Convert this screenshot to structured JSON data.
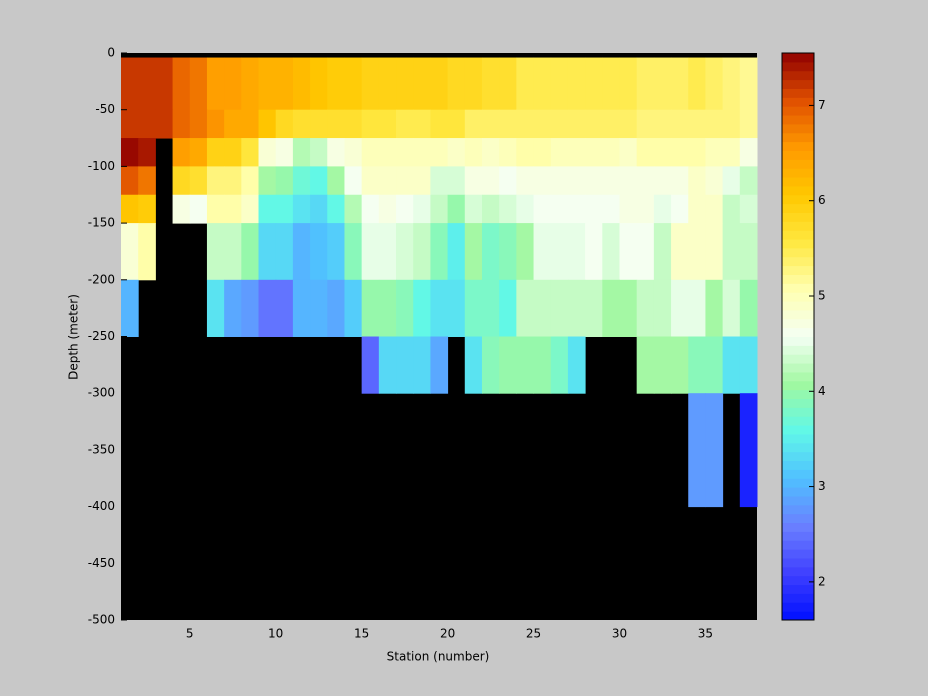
{
  "chart_data": {
    "type": "heatmap",
    "xlabel": "Station (number)",
    "ylabel": "Depth (meter)",
    "xlim": [
      1,
      38
    ],
    "xticks": [
      5,
      10,
      15,
      20,
      25,
      30,
      35
    ],
    "ylim": [
      -500,
      0
    ],
    "yticks": [
      0,
      -50,
      -100,
      -150,
      -200,
      -250,
      -300,
      -350,
      -400,
      -450,
      -500
    ],
    "clim": [
      1.6,
      7.55
    ],
    "cticks": [
      2,
      3,
      4,
      5,
      6,
      7
    ],
    "colormap": [
      "#0010ff",
      "#4040ff",
      "#6a80ff",
      "#50c0ff",
      "#60f8e8",
      "#a0f8a0",
      "#f4fff4",
      "#ffffb0",
      "#ffe840",
      "#ffc800",
      "#ff9a00",
      "#e05000",
      "#900000"
    ],
    "missing_color": "#000000",
    "x_edges": [
      1,
      2,
      3,
      4,
      5,
      6,
      7,
      8,
      9,
      10,
      11,
      12,
      13,
      14,
      15,
      16,
      17,
      18,
      19,
      20,
      21,
      22,
      23,
      24,
      25,
      26,
      27,
      28,
      29,
      30,
      31,
      32,
      33,
      34,
      35,
      36,
      37,
      38
    ],
    "y_edges": [
      0,
      -4,
      -50,
      -75,
      -100,
      -125,
      -150,
      -200,
      -250,
      -300,
      -400,
      -500
    ],
    "values": [
      [
        null,
        null,
        null,
        null,
        null,
        null,
        null,
        null,
        null,
        null,
        null,
        null,
        null,
        null,
        null,
        null,
        null,
        null,
        null,
        null,
        null,
        null,
        null,
        null,
        null,
        null,
        null,
        null,
        null,
        null,
        null,
        null,
        null,
        null,
        null,
        null,
        null
      ],
      [
        7.2,
        7.2,
        7.2,
        6.9,
        6.8,
        6.5,
        6.5,
        6.4,
        6.3,
        6.3,
        6.2,
        6.1,
        6.0,
        6.0,
        5.9,
        5.9,
        5.9,
        5.9,
        5.9,
        5.8,
        5.8,
        5.7,
        5.7,
        5.5,
        5.5,
        5.5,
        5.5,
        5.5,
        5.5,
        5.5,
        5.4,
        5.4,
        5.4,
        5.5,
        5.4,
        5.3,
        5.2
      ],
      [
        7.2,
        7.2,
        7.2,
        6.9,
        6.8,
        6.6,
        6.4,
        6.4,
        6.1,
        5.8,
        5.7,
        5.7,
        5.7,
        5.7,
        5.6,
        5.6,
        5.5,
        5.5,
        5.6,
        5.6,
        5.4,
        5.4,
        5.4,
        5.4,
        5.4,
        5.4,
        5.4,
        5.4,
        5.4,
        5.4,
        5.3,
        5.3,
        5.3,
        5.3,
        5.3,
        5.3,
        5.2
      ],
      [
        7.5,
        7.4,
        null,
        6.5,
        6.4,
        5.9,
        5.9,
        5.6,
        4.8,
        4.7,
        4.2,
        4.3,
        4.7,
        4.8,
        5.0,
        5.0,
        5.0,
        5.0,
        5.0,
        4.9,
        5.0,
        4.9,
        5.0,
        5.1,
        5.1,
        5.0,
        5.0,
        5.0,
        5.0,
        4.9,
        5.1,
        5.1,
        5.1,
        5.1,
        5.0,
        5.0,
        4.7
      ],
      [
        7.0,
        6.8,
        null,
        5.8,
        5.7,
        5.3,
        5.3,
        5.1,
        4.1,
        4.0,
        3.7,
        3.6,
        4.1,
        4.6,
        4.9,
        4.9,
        4.9,
        4.9,
        4.4,
        4.4,
        4.7,
        4.7,
        4.6,
        4.7,
        4.7,
        4.7,
        4.7,
        4.7,
        4.7,
        4.7,
        4.7,
        4.7,
        4.7,
        4.9,
        4.8,
        4.5,
        4.3
      ],
      [
        6.1,
        6.0,
        null,
        4.7,
        4.6,
        5.1,
        5.1,
        4.9,
        3.6,
        3.6,
        3.4,
        3.3,
        3.6,
        4.2,
        4.6,
        4.7,
        4.6,
        4.5,
        4.3,
        4.0,
        4.4,
        4.3,
        4.4,
        4.5,
        4.6,
        4.6,
        4.6,
        4.6,
        4.6,
        4.7,
        4.7,
        4.5,
        4.6,
        4.9,
        4.9,
        4.3,
        4.4
      ],
      [
        4.8,
        5.1,
        null,
        null,
        null,
        4.3,
        4.3,
        4.0,
        3.3,
        3.3,
        3.0,
        3.1,
        3.2,
        3.9,
        4.5,
        4.5,
        4.4,
        4.3,
        3.9,
        3.5,
        4.1,
        3.8,
        3.9,
        4.1,
        4.5,
        4.5,
        4.5,
        4.6,
        4.4,
        4.6,
        4.6,
        4.3,
        4.9,
        4.9,
        4.9,
        4.3,
        4.3
      ],
      [
        3.0,
        null,
        null,
        null,
        null,
        3.4,
        2.9,
        2.8,
        2.5,
        2.5,
        3.0,
        3.0,
        2.9,
        3.2,
        4.0,
        4.0,
        3.9,
        3.6,
        3.4,
        3.4,
        3.8,
        3.8,
        3.6,
        4.3,
        4.3,
        4.3,
        4.3,
        4.3,
        4.1,
        4.1,
        4.3,
        4.3,
        4.5,
        4.5,
        4.1,
        4.4,
        4.0
      ],
      [
        null,
        null,
        null,
        null,
        null,
        null,
        null,
        null,
        null,
        null,
        null,
        null,
        null,
        null,
        2.4,
        3.3,
        3.3,
        3.3,
        2.9,
        null,
        3.4,
        3.9,
        4.0,
        4.0,
        4.0,
        3.8,
        3.4,
        null,
        null,
        null,
        4.1,
        4.1,
        4.1,
        3.9,
        3.9,
        3.4,
        3.4
      ],
      [
        null,
        null,
        null,
        null,
        null,
        null,
        null,
        null,
        null,
        null,
        null,
        null,
        null,
        null,
        null,
        null,
        null,
        null,
        null,
        null,
        null,
        null,
        null,
        null,
        null,
        null,
        null,
        null,
        null,
        null,
        null,
        null,
        null,
        2.8,
        2.8,
        null,
        1.8
      ],
      [
        null,
        null,
        null,
        null,
        null,
        null,
        null,
        null,
        null,
        null,
        null,
        null,
        null,
        null,
        null,
        null,
        null,
        null,
        null,
        null,
        null,
        null,
        null,
        null,
        null,
        null,
        null,
        null,
        null,
        null,
        null,
        null,
        null,
        null,
        null,
        null,
        null
      ]
    ]
  }
}
